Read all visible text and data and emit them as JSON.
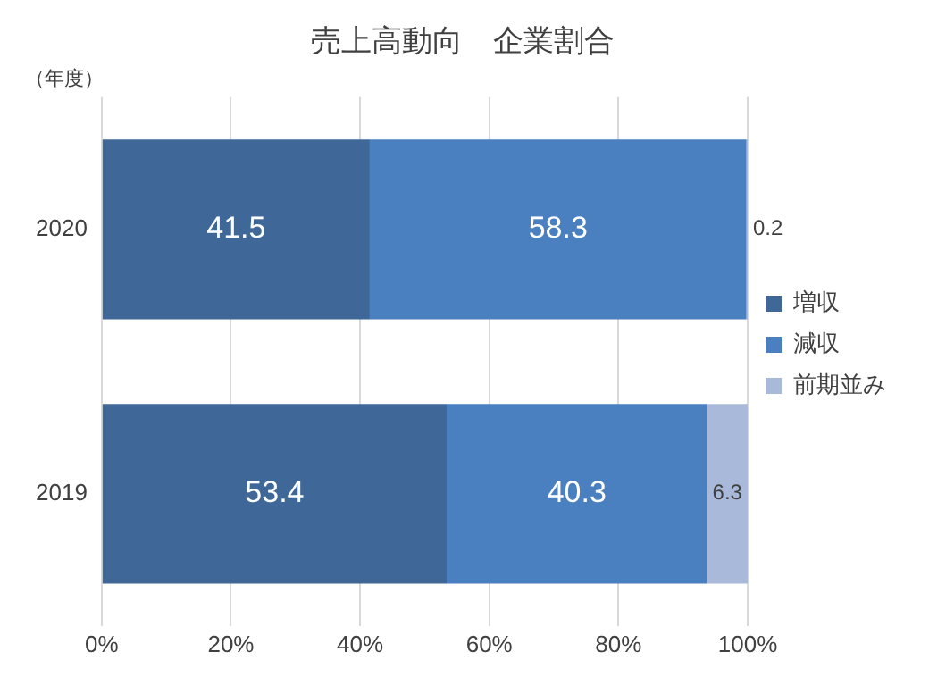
{
  "chart_data": {
    "type": "bar",
    "orientation": "horizontal",
    "stacked": true,
    "title": "売上高動向　企業割合",
    "ylabel": "（年度）",
    "categories": [
      "2020",
      "2019"
    ],
    "series": [
      {
        "name": "増収",
        "color": "#3f6898",
        "values": [
          41.5,
          53.4
        ]
      },
      {
        "name": "減収",
        "color": "#4a7fc0",
        "values": [
          58.3,
          40.3
        ]
      },
      {
        "name": "前期並み",
        "color": "#a9b9d9",
        "values": [
          0.2,
          6.3
        ]
      }
    ],
    "xlim": [
      0,
      100
    ],
    "xticks": [
      {
        "value": 0,
        "label": "0%"
      },
      {
        "value": 20,
        "label": "20%"
      },
      {
        "value": 40,
        "label": "40%"
      },
      {
        "value": 60,
        "label": "60%"
      },
      {
        "value": 80,
        "label": "80%"
      },
      {
        "value": 100,
        "label": "100%"
      }
    ],
    "grid": "x",
    "legend": "right",
    "data_labels": true
  }
}
